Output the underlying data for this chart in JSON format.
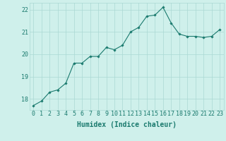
{
  "x": [
    0,
    1,
    2,
    3,
    4,
    5,
    6,
    7,
    8,
    9,
    10,
    11,
    12,
    13,
    14,
    15,
    16,
    17,
    18,
    19,
    20,
    21,
    22,
    23
  ],
  "y": [
    17.7,
    17.9,
    18.3,
    18.4,
    18.7,
    19.6,
    19.6,
    19.9,
    19.9,
    20.3,
    20.2,
    20.4,
    21.0,
    21.2,
    21.7,
    21.75,
    22.1,
    21.4,
    20.9,
    20.8,
    20.8,
    20.75,
    20.8,
    21.1
  ],
  "xlabel": "Humidex (Indice chaleur)",
  "ylim": [
    17.5,
    22.3
  ],
  "xlim": [
    -0.5,
    23.5
  ],
  "yticks": [
    18,
    19,
    20,
    21,
    22
  ],
  "xticks": [
    0,
    1,
    2,
    3,
    4,
    5,
    6,
    7,
    8,
    9,
    10,
    11,
    12,
    13,
    14,
    15,
    16,
    17,
    18,
    19,
    20,
    21,
    22,
    23
  ],
  "line_color": "#1a7a6e",
  "marker_color": "#1a7a6e",
  "bg_color": "#cff0eb",
  "grid_color": "#aad8d3",
  "tick_label_color": "#1a7a6e",
  "xlabel_fontsize": 7,
  "tick_fontsize": 6
}
